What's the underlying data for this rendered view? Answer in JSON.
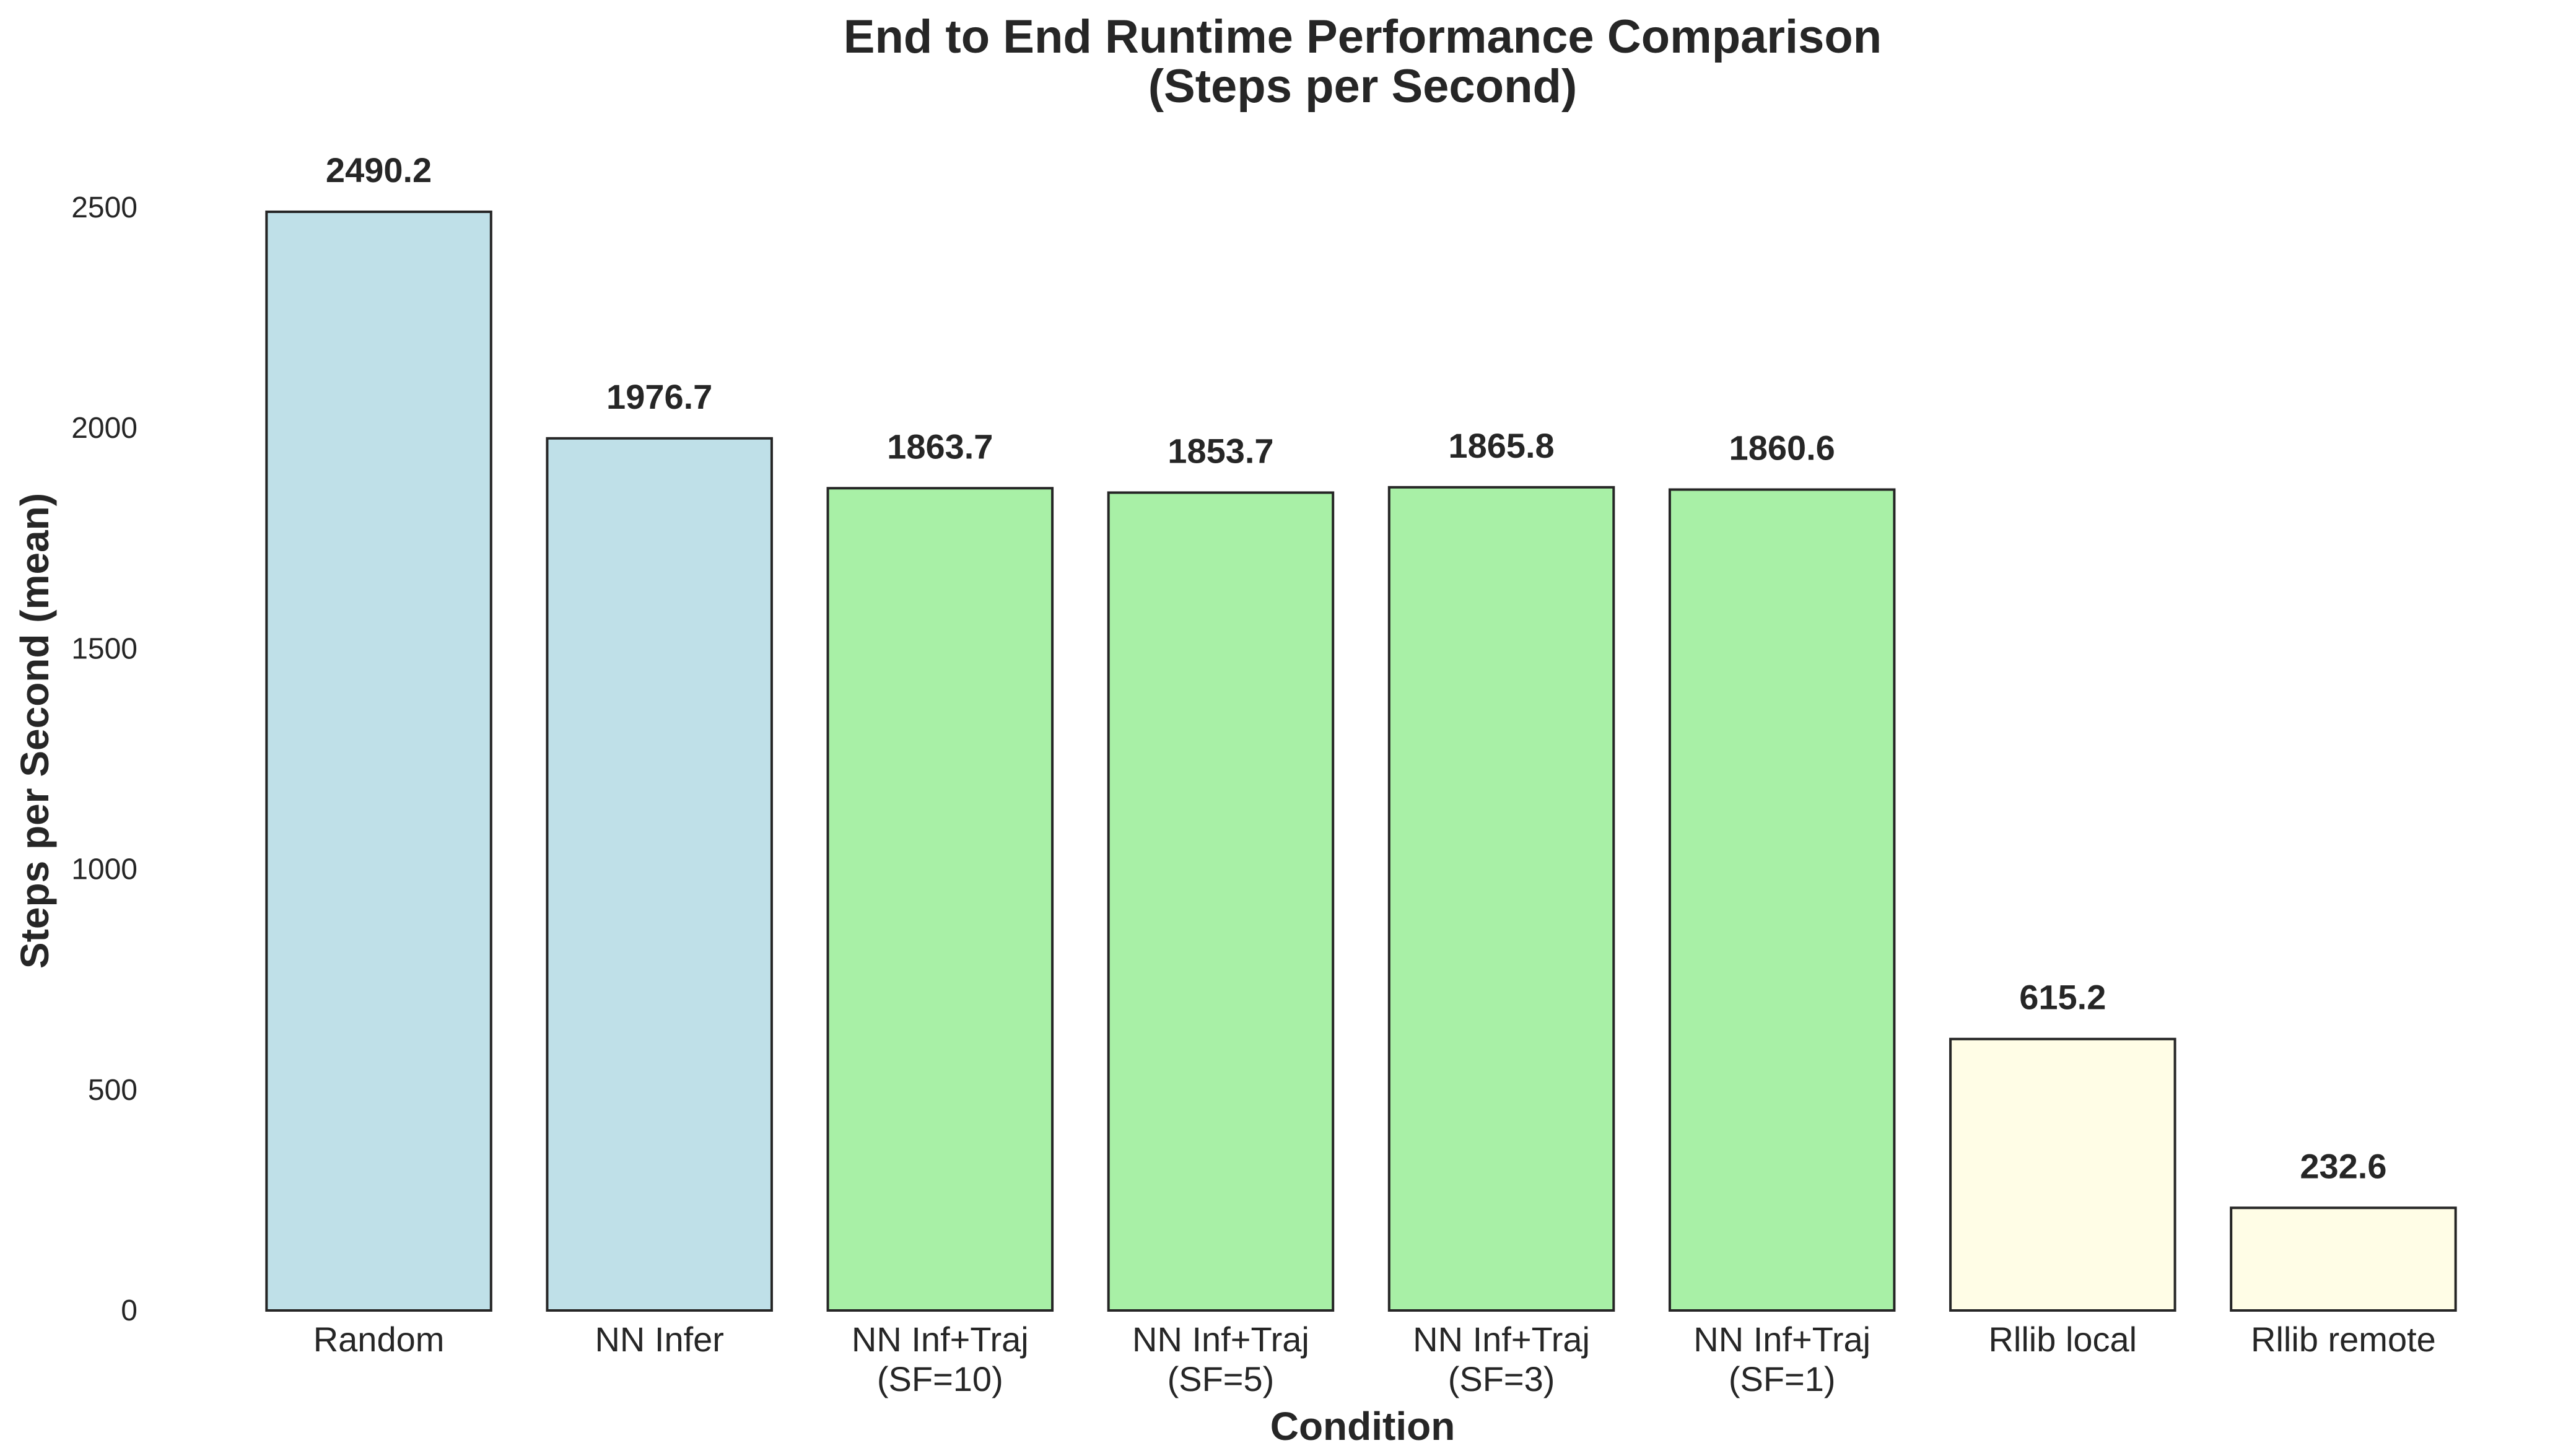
{
  "chart_data": {
    "type": "bar",
    "title": "End to End Runtime Performance Comparison",
    "subtitle": "(Steps per Second)",
    "xlabel": "Condition",
    "ylabel": "Steps per Second (mean)",
    "ylim": [
      0,
      2500
    ],
    "yticks": [
      "0",
      "500",
      "1000",
      "1500",
      "2000",
      "2500"
    ],
    "grid": false,
    "categories": [
      [
        "Random"
      ],
      [
        "NN Infer"
      ],
      [
        "NN Inf+Traj",
        "(SF=10)"
      ],
      [
        "NN Inf+Traj",
        "(SF=5)"
      ],
      [
        "NN Inf+Traj",
        "(SF=3)"
      ],
      [
        "NN Inf+Traj",
        "(SF=1)"
      ],
      [
        "Rllib local"
      ],
      [
        "Rllib remote"
      ]
    ],
    "values": [
      2490.2,
      1976.7,
      1863.7,
      1853.7,
      1865.8,
      1860.6,
      615.2,
      232.6
    ],
    "value_labels": [
      "2490.2",
      "1976.7",
      "1863.7",
      "1853.7",
      "1865.8",
      "1860.6",
      "615.2",
      "232.6"
    ],
    "colors": [
      "#bfe0e8",
      "#bfe0e8",
      "#a8f0a6",
      "#a8f0a6",
      "#a8f0a6",
      "#a8f0a6",
      "#fffde6",
      "#fffde6"
    ]
  }
}
